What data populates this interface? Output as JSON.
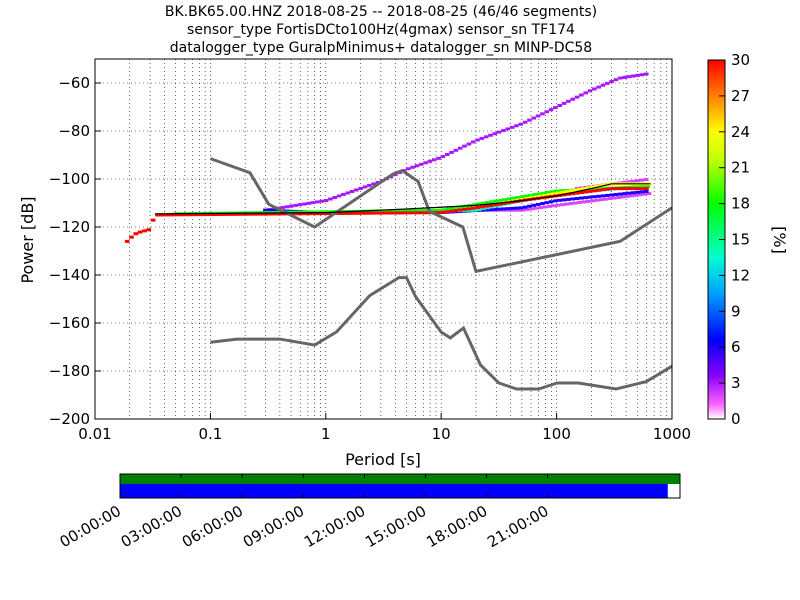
{
  "chart_data": {
    "type": "heatmap",
    "title_lines": [
      "BK.BK65.00.HNZ   2018-08-25 -- 2018-08-25  (46/46 segments)",
      "sensor_type FortisDCto100Hz(4gmax) sensor_sn TF174",
      "datalogger_type GuralpMinimus+ datalogger_sn MINP-DC58"
    ],
    "xlabel": "Period [s]",
    "ylabel": "Power [dB]",
    "xscale": "log",
    "xlim": [
      0.01,
      1000
    ],
    "ylim": [
      -200,
      -50
    ],
    "xticks": [
      {
        "v": 0.01,
        "t": "0.01"
      },
      {
        "v": 0.1,
        "t": "0.1"
      },
      {
        "v": 1,
        "t": "1"
      },
      {
        "v": 10,
        "t": "10"
      },
      {
        "v": 100,
        "t": "100"
      },
      {
        "v": 1000,
        "t": "1000"
      }
    ],
    "yticks": [
      {
        "v": -60,
        "t": "−60"
      },
      {
        "v": -80,
        "t": "−80"
      },
      {
        "v": -100,
        "t": "−100"
      },
      {
        "v": -120,
        "t": "−120"
      },
      {
        "v": -140,
        "t": "−140"
      },
      {
        "v": -160,
        "t": "−160"
      },
      {
        "v": -180,
        "t": "−180"
      },
      {
        "v": -200,
        "t": "−200"
      }
    ],
    "colorbar": {
      "label": "[%]",
      "range": [
        0,
        30
      ],
      "ticks": [
        "0",
        "3",
        "6",
        "9",
        "12",
        "15",
        "18",
        "21",
        "24",
        "27",
        "30"
      ]
    },
    "psd_traces": [
      {
        "percent": 3,
        "points": [
          [
            0.3,
            -113
          ],
          [
            1,
            -109
          ],
          [
            3,
            -101
          ],
          [
            5,
            -96
          ],
          [
            10,
            -91
          ],
          [
            20,
            -84
          ],
          [
            50,
            -77
          ],
          [
            100,
            -70
          ],
          [
            200,
            -63
          ],
          [
            350,
            -58
          ],
          [
            650,
            -56
          ]
        ]
      },
      {
        "percent": 2,
        "points": [
          [
            10,
            -113
          ],
          [
            50,
            -113
          ],
          [
            100,
            -111
          ],
          [
            650,
            -106
          ]
        ]
      },
      {
        "percent": 2,
        "points": [
          [
            150,
            -104
          ],
          [
            650,
            -100
          ]
        ]
      },
      {
        "percent": 6,
        "points": [
          [
            0.3,
            -113
          ],
          [
            1,
            -114
          ],
          [
            10,
            -114
          ],
          [
            50,
            -112
          ],
          [
            100,
            -109
          ],
          [
            650,
            -105
          ]
        ]
      },
      {
        "percent": 14,
        "points": [
          [
            0.8,
            -114
          ],
          [
            2,
            -114
          ],
          [
            20,
            -113
          ],
          [
            100,
            -106
          ],
          [
            650,
            -103
          ]
        ]
      },
      {
        "percent": 18,
        "points": [
          [
            0.05,
            -114.5
          ],
          [
            10,
            -113
          ],
          [
            100,
            -105
          ],
          [
            650,
            -103
          ]
        ]
      },
      {
        "percent": 24,
        "points": [
          [
            20,
            -112
          ],
          [
            100,
            -106
          ],
          [
            300,
            -102
          ],
          [
            650,
            -102
          ]
        ]
      },
      {
        "percent": 30,
        "points": [
          [
            0.019,
            -126
          ],
          [
            0.022,
            -123
          ],
          [
            0.025,
            -122
          ],
          [
            0.03,
            -121
          ],
          [
            0.033,
            -115
          ],
          [
            10,
            -114
          ],
          [
            20,
            -112
          ],
          [
            50,
            -109
          ],
          [
            100,
            -107
          ],
          [
            300,
            -104
          ],
          [
            650,
            -104
          ]
        ]
      }
    ],
    "mode_line": [
      [
        0.033,
        -114.5
      ],
      [
        1,
        -114
      ],
      [
        5,
        -112.5
      ],
      [
        20,
        -111
      ],
      [
        50,
        -109
      ],
      [
        100,
        -107
      ],
      [
        200,
        -104
      ],
      [
        300,
        -102
      ],
      [
        650,
        -102
      ]
    ],
    "nhnm": [
      [
        0.1,
        -91.5
      ],
      [
        0.22,
        -97.4
      ],
      [
        0.32,
        -110.5
      ],
      [
        0.8,
        -120
      ],
      [
        3.8,
        -98
      ],
      [
        4.6,
        -96.5
      ],
      [
        6.3,
        -101
      ],
      [
        7.9,
        -113.5
      ],
      [
        15.4,
        -120
      ],
      [
        20,
        -138.5
      ],
      [
        354.8,
        -126
      ],
      [
        1000,
        -112
      ]
    ],
    "nlnm": [
      [
        0.1,
        -168
      ],
      [
        0.17,
        -166.7
      ],
      [
        0.4,
        -166.7
      ],
      [
        0.8,
        -169.2
      ],
      [
        1.24,
        -163.7
      ],
      [
        2.4,
        -148.6
      ],
      [
        4.3,
        -141.1
      ],
      [
        5,
        -141.1
      ],
      [
        6,
        -149
      ],
      [
        10,
        -163.8
      ],
      [
        12,
        -166.2
      ],
      [
        15.6,
        -162.1
      ],
      [
        21.9,
        -177.5
      ],
      [
        31.6,
        -185
      ],
      [
        45,
        -187.5
      ],
      [
        70,
        -187.5
      ],
      [
        101,
        -185
      ],
      [
        154,
        -185
      ],
      [
        328,
        -187.5
      ],
      [
        600,
        -184.4
      ],
      [
        1000,
        -178
      ]
    ],
    "coverage": {
      "time_ticks": [
        "00:00:00",
        "03:00:00",
        "06:00:00",
        "09:00:00",
        "12:00:00",
        "15:00:00",
        "18:00:00",
        "21:00:00"
      ],
      "span_hours": 27.5,
      "data_coverage_hours": [
        0,
        26.9
      ],
      "used_coverage_hours": [
        0,
        27.5
      ]
    }
  }
}
